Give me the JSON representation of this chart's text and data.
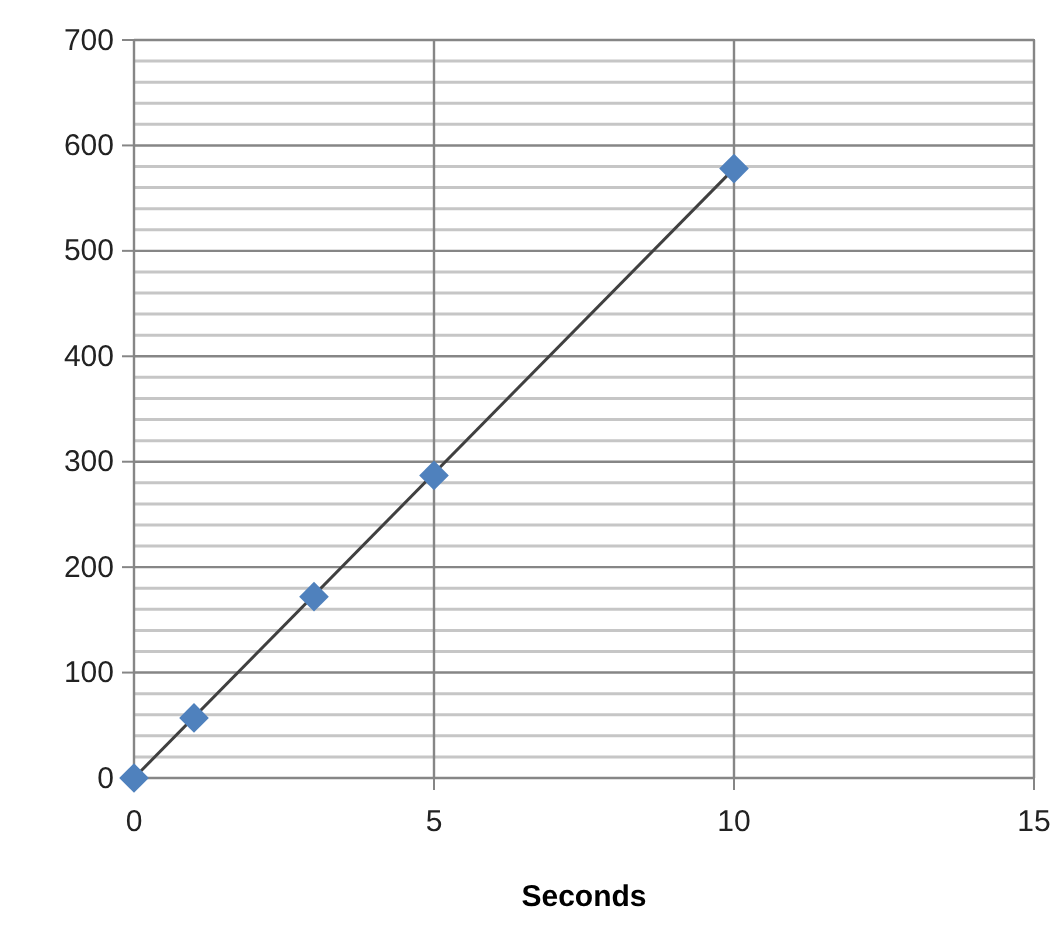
{
  "chart_data": {
    "type": "scatter",
    "xlabel": "Seconds",
    "xlim": [
      0,
      15
    ],
    "xticks": [
      0,
      5,
      10,
      15
    ],
    "ylim": [
      0,
      700
    ],
    "yticks": [
      0,
      {
        "value": 20,
        "label": null
      },
      {
        "value": 40,
        "label": null
      },
      {
        "value": 60,
        "label": null
      },
      {
        "value": 80,
        "label": null
      },
      100,
      {
        "value": 120,
        "label": null
      },
      {
        "value": 140,
        "label": null
      },
      {
        "value": 160,
        "label": null
      },
      {
        "value": 180,
        "label": null
      },
      200,
      {
        "value": 220,
        "label": null
      },
      {
        "value": 240,
        "label": null
      },
      {
        "value": 260,
        "label": null
      },
      {
        "value": 280,
        "label": null
      },
      300,
      {
        "value": 320,
        "label": null
      },
      {
        "value": 340,
        "label": null
      },
      {
        "value": 360,
        "label": null
      },
      {
        "value": 380,
        "label": null
      },
      400,
      {
        "value": 420,
        "label": null
      },
      {
        "value": 440,
        "label": null
      },
      {
        "value": 460,
        "label": null
      },
      {
        "value": 480,
        "label": null
      },
      500,
      {
        "value": 520,
        "label": null
      },
      {
        "value": 540,
        "label": null
      },
      {
        "value": 560,
        "label": null
      },
      {
        "value": 580,
        "label": null
      },
      600,
      {
        "value": 620,
        "label": null
      },
      {
        "value": 640,
        "label": null
      },
      {
        "value": 660,
        "label": null
      },
      {
        "value": 680,
        "label": null
      },
      700
    ],
    "grid": true,
    "series": [
      {
        "type": "line",
        "color": "#404040",
        "marker": "none",
        "x": [
          0,
          10
        ],
        "values": [
          0,
          578
        ]
      },
      {
        "color": "#4f81bd",
        "marker": "diamond",
        "x": [
          0,
          1,
          3,
          5,
          10
        ],
        "values": [
          0,
          57,
          172,
          287,
          578
        ]
      }
    ]
  }
}
